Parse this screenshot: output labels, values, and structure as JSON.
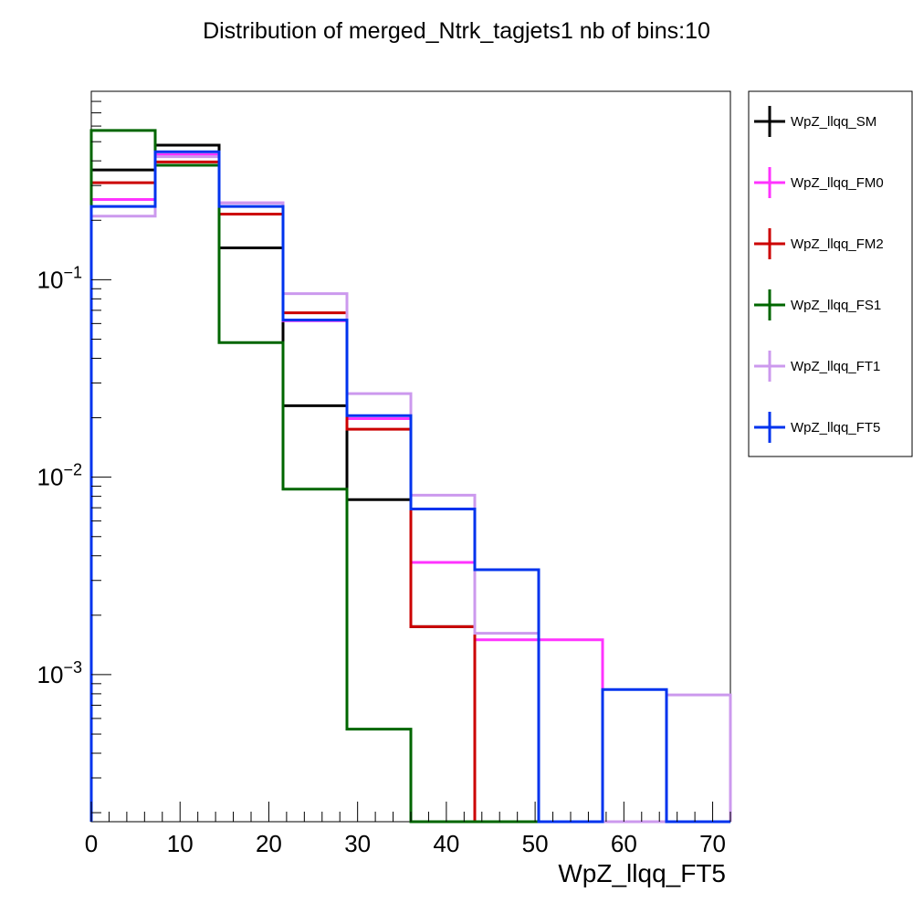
{
  "chart_data": {
    "type": "histogram-step",
    "title": "Distribution of merged_Ntrk_tagjets1 nb of bins:10",
    "xlabel": "WpZ_llqq_FT5",
    "ylabel": "",
    "xlim": [
      0,
      72
    ],
    "ylim": [
      0.00018,
      0.9
    ],
    "yscale": "log",
    "bin_edges": [
      0,
      7.2,
      14.4,
      21.6,
      28.8,
      36,
      43.2,
      50.4,
      57.6,
      64.8,
      72
    ],
    "x_ticks": [
      0,
      10,
      20,
      30,
      40,
      50,
      60,
      70
    ],
    "x_tick_labels": [
      "0",
      "10",
      "20",
      "30",
      "40",
      "50",
      "60",
      "70"
    ],
    "y_tick_labels": [
      {
        "value": 0.1,
        "base": "10",
        "exp": "−1"
      },
      {
        "value": 0.01,
        "base": "10",
        "exp": "−2"
      },
      {
        "value": 0.001,
        "base": "10",
        "exp": "−3"
      }
    ],
    "legend_position": "right-outside-top",
    "series": [
      {
        "name": "WpZ_llqq_SM",
        "color": "#000000",
        "values": [
          0.36,
          0.48,
          0.145,
          0.023,
          0.0077,
          0.00175,
          0,
          0,
          0,
          0
        ]
      },
      {
        "name": "WpZ_llqq_FM0",
        "color": "#ff33ff",
        "values": [
          0.255,
          0.43,
          0.245,
          0.062,
          0.0198,
          0.0037,
          0.0015,
          0.0015,
          0,
          0
        ]
      },
      {
        "name": "WpZ_llqq_FM2",
        "color": "#cc0000",
        "values": [
          0.31,
          0.395,
          0.215,
          0.068,
          0.0175,
          0.00175,
          0,
          0,
          0,
          0
        ]
      },
      {
        "name": "WpZ_llqq_FS1",
        "color": "#006600",
        "values": [
          0.57,
          0.38,
          0.048,
          0.0087,
          0.00053,
          0,
          0,
          0,
          0,
          0
        ]
      },
      {
        "name": "WpZ_llqq_FT1",
        "color": "#cc99ee",
        "values": [
          0.21,
          0.42,
          0.245,
          0.085,
          0.0265,
          0.0081,
          0.00162,
          0,
          0,
          0.00079
        ]
      },
      {
        "name": "WpZ_llqq_FT5",
        "color": "#0033ee",
        "values": [
          0.235,
          0.445,
          0.235,
          0.0625,
          0.0205,
          0.0069,
          0.0034,
          0,
          0.00084,
          0
        ]
      }
    ]
  }
}
